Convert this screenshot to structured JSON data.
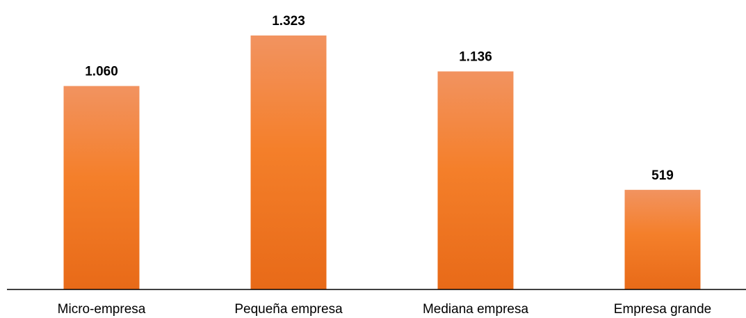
{
  "chart_data": {
    "type": "bar",
    "categories": [
      "Micro-empresa",
      "Pequeña empresa",
      "Mediana empresa",
      "Empresa grande"
    ],
    "values": [
      1060,
      1323,
      1136,
      519
    ],
    "value_labels": [
      "1.060",
      "1.323",
      "1.136",
      "519"
    ],
    "title": "",
    "xlabel": "",
    "ylabel": "",
    "ylim": [
      0,
      1323
    ],
    "grid": false,
    "legend": "none",
    "colors": {
      "bar_top": "#f29360",
      "bar_mid": "#f47f2a",
      "bar_bottom": "#e86a18",
      "axis": "#000000"
    }
  }
}
